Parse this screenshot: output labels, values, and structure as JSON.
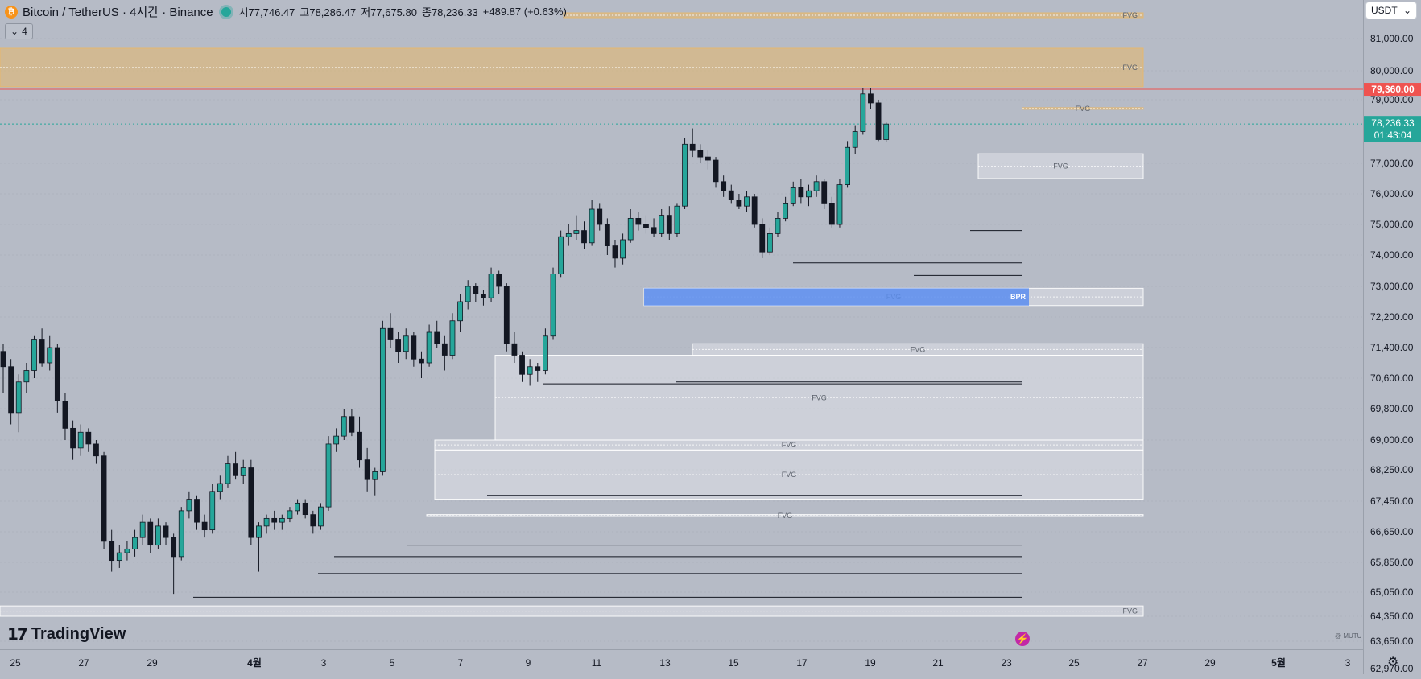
{
  "header": {
    "symbol_title": "Bitcoin / TetherUS · 4시간 · Binance",
    "coin_icon": "bitcoin-icon",
    "ohlc": {
      "open": "시77,746.47",
      "high": "고78,286.47",
      "low": "저77,675.80",
      "close": "종78,236.33",
      "change": "+489.87 (+0.63%)"
    },
    "indicators_toggle": "4"
  },
  "currency_button": "USDT",
  "branding": "TradingView",
  "watermark": "@ MUTU",
  "colors": {
    "up": "#26a69a",
    "down": "#131722",
    "resistance": "#ef5350",
    "current": "#26a69a",
    "fvg_bear": "#e8b86a",
    "fvg_neutral": "#e8ebf0",
    "bpr": "#5b8def"
  },
  "chart_data": {
    "type": "candlestick",
    "title": "Bitcoin / TetherUS · 4시간 · Binance",
    "y_ticks": [
      "81,000.00",
      "80,000.00",
      "79,000.00",
      "77,000.00",
      "76,000.00",
      "75,000.00",
      "74,000.00",
      "73,000.00",
      "72,200.00",
      "71,400.00",
      "70,600.00",
      "69,800.00",
      "69,000.00",
      "68,250.00",
      "67,450.00",
      "66,650.00",
      "65,850.00",
      "65,050.00",
      "64,350.00",
      "63,650.00",
      "62,970.00"
    ],
    "x_ticks": [
      "25",
      "27",
      "29",
      "4월",
      "3",
      "5",
      "7",
      "9",
      "11",
      "13",
      "15",
      "17",
      "19",
      "21",
      "23",
      "25",
      "27",
      "29",
      "5월",
      "3"
    ],
    "current_price": {
      "value": 78236.33,
      "label": "78,236.33",
      "countdown": "01:43:04"
    },
    "resistance_price": {
      "value": 79360,
      "label": "79,360.00"
    },
    "fvg_zones": [
      {
        "top": 81800,
        "bottom": 81650,
        "type": "bear",
        "label": "FVG"
      },
      {
        "top": 80700,
        "bottom": 79450,
        "type": "bear",
        "label": "FVG"
      },
      {
        "top": 78750,
        "bottom": 78700,
        "type": "bear",
        "label": "FVG"
      },
      {
        "top": 77300,
        "bottom": 76500,
        "type": "neutral",
        "label": "FVG"
      },
      {
        "top": 72950,
        "bottom": 72500,
        "type": "neutral",
        "label": "FVG"
      },
      {
        "top": 71500,
        "bottom": 71200,
        "type": "neutral",
        "label": "FVG"
      },
      {
        "top": 71200,
        "bottom": 69000,
        "type": "neutral",
        "label": "FVG"
      },
      {
        "top": 69000,
        "bottom": 68750,
        "type": "neutral",
        "label": "FVG"
      },
      {
        "top": 68750,
        "bottom": 67500,
        "type": "neutral",
        "label": "FVG"
      },
      {
        "top": 67100,
        "bottom": 67050,
        "type": "neutral",
        "label": "FVG"
      },
      {
        "top": 64650,
        "bottom": 64350,
        "type": "neutral",
        "label": "FVG"
      }
    ],
    "bpr_zone": {
      "top": 72950,
      "bottom": 72500,
      "label": "BPR"
    },
    "liquidity_lines": [
      74800,
      73750,
      73350,
      70500,
      70450,
      67600,
      66300,
      66000,
      65550,
      64900
    ],
    "candles": [
      {
        "o": 71300,
        "h": 71500,
        "l": 70200,
        "c": 70900
      },
      {
        "o": 70900,
        "h": 71100,
        "l": 69400,
        "c": 69700
      },
      {
        "o": 69700,
        "h": 70700,
        "l": 69200,
        "c": 70500
      },
      {
        "o": 70500,
        "h": 71000,
        "l": 70200,
        "c": 70800
      },
      {
        "o": 70800,
        "h": 71700,
        "l": 70600,
        "c": 71600
      },
      {
        "o": 71600,
        "h": 71900,
        "l": 70900,
        "c": 71000
      },
      {
        "o": 71000,
        "h": 71700,
        "l": 70800,
        "c": 71400
      },
      {
        "o": 71400,
        "h": 71500,
        "l": 69700,
        "c": 70000
      },
      {
        "o": 70000,
        "h": 70200,
        "l": 69000,
        "c": 69300
      },
      {
        "o": 69300,
        "h": 69500,
        "l": 68500,
        "c": 68800
      },
      {
        "o": 68800,
        "h": 69400,
        "l": 68600,
        "c": 69200
      },
      {
        "o": 69200,
        "h": 69300,
        "l": 68700,
        "c": 68900
      },
      {
        "o": 68900,
        "h": 69000,
        "l": 68400,
        "c": 68600
      },
      {
        "o": 68600,
        "h": 68700,
        "l": 66200,
        "c": 66400
      },
      {
        "o": 66400,
        "h": 66700,
        "l": 65600,
        "c": 65900
      },
      {
        "o": 65900,
        "h": 66300,
        "l": 65700,
        "c": 66100
      },
      {
        "o": 66100,
        "h": 66400,
        "l": 65900,
        "c": 66200
      },
      {
        "o": 66200,
        "h": 66700,
        "l": 66000,
        "c": 66500
      },
      {
        "o": 66500,
        "h": 67100,
        "l": 66300,
        "c": 66900
      },
      {
        "o": 66900,
        "h": 67000,
        "l": 66100,
        "c": 66300
      },
      {
        "o": 66300,
        "h": 67000,
        "l": 66200,
        "c": 66800
      },
      {
        "o": 66800,
        "h": 66900,
        "l": 66300,
        "c": 66500
      },
      {
        "o": 66500,
        "h": 66600,
        "l": 65000,
        "c": 66000
      },
      {
        "o": 66000,
        "h": 67300,
        "l": 65900,
        "c": 67200
      },
      {
        "o": 67200,
        "h": 67700,
        "l": 67000,
        "c": 67500
      },
      {
        "o": 67500,
        "h": 67600,
        "l": 66700,
        "c": 66900
      },
      {
        "o": 66900,
        "h": 67100,
        "l": 66500,
        "c": 66700
      },
      {
        "o": 66700,
        "h": 67900,
        "l": 66600,
        "c": 67700
      },
      {
        "o": 67700,
        "h": 68100,
        "l": 67500,
        "c": 67900
      },
      {
        "o": 67900,
        "h": 68600,
        "l": 67800,
        "c": 68400
      },
      {
        "o": 68400,
        "h": 68700,
        "l": 68000,
        "c": 68100
      },
      {
        "o": 68100,
        "h": 68500,
        "l": 67900,
        "c": 68300
      },
      {
        "o": 68300,
        "h": 68500,
        "l": 66300,
        "c": 66500
      },
      {
        "o": 66500,
        "h": 66900,
        "l": 65600,
        "c": 66800
      },
      {
        "o": 66800,
        "h": 67100,
        "l": 66600,
        "c": 67000
      },
      {
        "o": 67000,
        "h": 67200,
        "l": 66700,
        "c": 66900
      },
      {
        "o": 66900,
        "h": 67100,
        "l": 66700,
        "c": 67000
      },
      {
        "o": 67000,
        "h": 67300,
        "l": 66900,
        "c": 67200
      },
      {
        "o": 67200,
        "h": 67500,
        "l": 67100,
        "c": 67400
      },
      {
        "o": 67400,
        "h": 67500,
        "l": 67000,
        "c": 67100
      },
      {
        "o": 67100,
        "h": 67200,
        "l": 66600,
        "c": 66800
      },
      {
        "o": 66800,
        "h": 67400,
        "l": 66700,
        "c": 67300
      },
      {
        "o": 67300,
        "h": 69100,
        "l": 67200,
        "c": 68900
      },
      {
        "o": 68900,
        "h": 69300,
        "l": 68700,
        "c": 69100
      },
      {
        "o": 69100,
        "h": 69800,
        "l": 69000,
        "c": 69600
      },
      {
        "o": 69600,
        "h": 69800,
        "l": 69100,
        "c": 69200
      },
      {
        "o": 69200,
        "h": 69600,
        "l": 68300,
        "c": 68500
      },
      {
        "o": 68500,
        "h": 68800,
        "l": 67700,
        "c": 68000
      },
      {
        "o": 68000,
        "h": 68300,
        "l": 67600,
        "c": 68200
      },
      {
        "o": 68200,
        "h": 72100,
        "l": 68100,
        "c": 71900
      },
      {
        "o": 71900,
        "h": 72300,
        "l": 71400,
        "c": 71600
      },
      {
        "o": 71600,
        "h": 71800,
        "l": 71000,
        "c": 71300
      },
      {
        "o": 71300,
        "h": 71900,
        "l": 71100,
        "c": 71700
      },
      {
        "o": 71700,
        "h": 71800,
        "l": 70900,
        "c": 71100
      },
      {
        "o": 71100,
        "h": 71300,
        "l": 70600,
        "c": 71000
      },
      {
        "o": 71000,
        "h": 72000,
        "l": 70900,
        "c": 71800
      },
      {
        "o": 71800,
        "h": 72100,
        "l": 71400,
        "c": 71500
      },
      {
        "o": 71500,
        "h": 71700,
        "l": 70800,
        "c": 71200
      },
      {
        "o": 71200,
        "h": 72300,
        "l": 71100,
        "c": 72100
      },
      {
        "o": 72100,
        "h": 72800,
        "l": 71800,
        "c": 72600
      },
      {
        "o": 72600,
        "h": 73200,
        "l": 72400,
        "c": 73000
      },
      {
        "o": 73000,
        "h": 73100,
        "l": 72600,
        "c": 72800
      },
      {
        "o": 72800,
        "h": 72900,
        "l": 72500,
        "c": 72700
      },
      {
        "o": 72700,
        "h": 73600,
        "l": 72600,
        "c": 73400
      },
      {
        "o": 73400,
        "h": 73500,
        "l": 72800,
        "c": 73000
      },
      {
        "o": 73000,
        "h": 73100,
        "l": 71300,
        "c": 71500
      },
      {
        "o": 71500,
        "h": 71800,
        "l": 71000,
        "c": 71200
      },
      {
        "o": 71200,
        "h": 71300,
        "l": 70500,
        "c": 70700
      },
      {
        "o": 70700,
        "h": 71100,
        "l": 70400,
        "c": 70900
      },
      {
        "o": 70900,
        "h": 71000,
        "l": 70500,
        "c": 70800
      },
      {
        "o": 70800,
        "h": 71900,
        "l": 70700,
        "c": 71700
      },
      {
        "o": 71700,
        "h": 73600,
        "l": 71600,
        "c": 73400
      },
      {
        "o": 73400,
        "h": 74800,
        "l": 73300,
        "c": 74600
      },
      {
        "o": 74600,
        "h": 75000,
        "l": 74300,
        "c": 74700
      },
      {
        "o": 74700,
        "h": 75300,
        "l": 74500,
        "c": 74800
      },
      {
        "o": 74800,
        "h": 75100,
        "l": 74200,
        "c": 74400
      },
      {
        "o": 74400,
        "h": 75800,
        "l": 74300,
        "c": 75500
      },
      {
        "o": 75500,
        "h": 75700,
        "l": 74800,
        "c": 75000
      },
      {
        "o": 75000,
        "h": 75200,
        "l": 74000,
        "c": 74300
      },
      {
        "o": 74300,
        "h": 74500,
        "l": 73600,
        "c": 73900
      },
      {
        "o": 73900,
        "h": 74700,
        "l": 73700,
        "c": 74500
      },
      {
        "o": 74500,
        "h": 75500,
        "l": 74400,
        "c": 75200
      },
      {
        "o": 75200,
        "h": 75400,
        "l": 74800,
        "c": 75000
      },
      {
        "o": 75000,
        "h": 75300,
        "l": 74700,
        "c": 74900
      },
      {
        "o": 74900,
        "h": 75200,
        "l": 74600,
        "c": 74700
      },
      {
        "o": 74700,
        "h": 75500,
        "l": 74600,
        "c": 75300
      },
      {
        "o": 75300,
        "h": 75600,
        "l": 74500,
        "c": 74700
      },
      {
        "o": 74700,
        "h": 75700,
        "l": 74600,
        "c": 75600
      },
      {
        "o": 75600,
        "h": 77800,
        "l": 75500,
        "c": 77600
      },
      {
        "o": 77600,
        "h": 78100,
        "l": 77200,
        "c": 77400
      },
      {
        "o": 77400,
        "h": 77600,
        "l": 77000,
        "c": 77200
      },
      {
        "o": 77200,
        "h": 77400,
        "l": 76800,
        "c": 77100
      },
      {
        "o": 77100,
        "h": 77200,
        "l": 76200,
        "c": 76400
      },
      {
        "o": 76400,
        "h": 76600,
        "l": 75900,
        "c": 76100
      },
      {
        "o": 76100,
        "h": 76300,
        "l": 75700,
        "c": 75800
      },
      {
        "o": 75800,
        "h": 76000,
        "l": 75500,
        "c": 75600
      },
      {
        "o": 75600,
        "h": 76100,
        "l": 75400,
        "c": 75900
      },
      {
        "o": 75900,
        "h": 76000,
        "l": 74900,
        "c": 75000
      },
      {
        "o": 75000,
        "h": 75200,
        "l": 73900,
        "c": 74100
      },
      {
        "o": 74100,
        "h": 74900,
        "l": 74000,
        "c": 74700
      },
      {
        "o": 74700,
        "h": 75400,
        "l": 74600,
        "c": 75200
      },
      {
        "o": 75200,
        "h": 75900,
        "l": 75100,
        "c": 75700
      },
      {
        "o": 75700,
        "h": 76400,
        "l": 75600,
        "c": 76200
      },
      {
        "o": 76200,
        "h": 76500,
        "l": 75700,
        "c": 75900
      },
      {
        "o": 75900,
        "h": 76300,
        "l": 75600,
        "c": 76100
      },
      {
        "o": 76100,
        "h": 76600,
        "l": 75900,
        "c": 76400
      },
      {
        "o": 76400,
        "h": 76500,
        "l": 75500,
        "c": 75700
      },
      {
        "o": 75700,
        "h": 75900,
        "l": 74900,
        "c": 75000
      },
      {
        "o": 75000,
        "h": 76500,
        "l": 74900,
        "c": 76300
      },
      {
        "o": 76300,
        "h": 77700,
        "l": 76200,
        "c": 77500
      },
      {
        "o": 77500,
        "h": 78200,
        "l": 77300,
        "c": 78000
      },
      {
        "o": 78000,
        "h": 79400,
        "l": 77900,
        "c": 79200
      },
      {
        "o": 79200,
        "h": 79400,
        "l": 78700,
        "c": 78900
      },
      {
        "o": 78900,
        "h": 79000,
        "l": 77700,
        "c": 77746.47
      },
      {
        "o": 77746.47,
        "h": 78286.47,
        "l": 77675.8,
        "c": 78236.33
      }
    ]
  }
}
